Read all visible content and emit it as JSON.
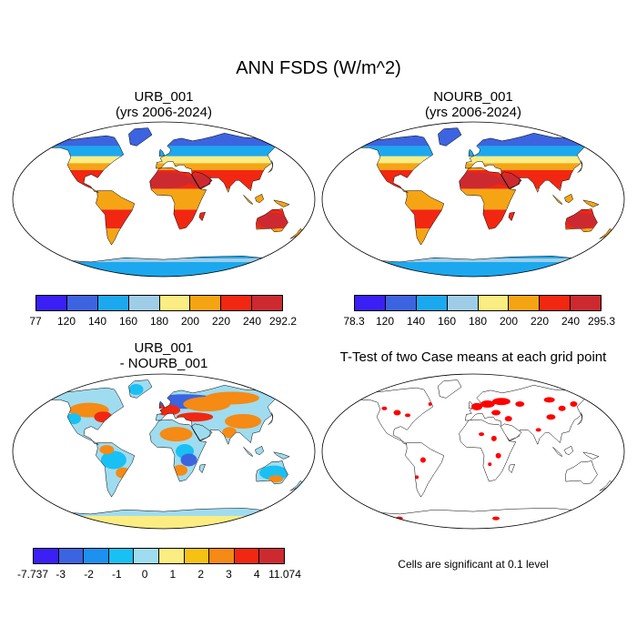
{
  "title": "ANN FSDS (W/m^2)",
  "panels": {
    "urb": {
      "name": "URB_001",
      "years": "(yrs 2006-2024)"
    },
    "nourb": {
      "name": "NOURB_001",
      "years": "(yrs 2006-2024)"
    },
    "diff": {
      "line1": "URB_001",
      "line2": "- NOURB_001"
    },
    "ttest": {
      "title": "T-Test of two Case means at each grid point",
      "note": "Cells are significant at 0.1 level"
    }
  },
  "colorbars": {
    "urb": {
      "colors": [
        "#3b1ff5",
        "#3c64e0",
        "#1ca8ef",
        "#9fcde8",
        "#fbed82",
        "#f5a514",
        "#f22712",
        "#cc2a30"
      ],
      "labels": [
        "77",
        "120",
        "140",
        "160",
        "180",
        "200",
        "220",
        "240",
        "292.2"
      ]
    },
    "nourb": {
      "colors": [
        "#3b1ff5",
        "#3c64e0",
        "#1ca8ef",
        "#9fcde8",
        "#fbed82",
        "#f5a514",
        "#f22712",
        "#cc2a30"
      ],
      "labels": [
        "78.3",
        "120",
        "140",
        "160",
        "180",
        "200",
        "220",
        "240",
        "295.3"
      ]
    },
    "diff": {
      "colors": [
        "#3b1ff5",
        "#3c64e0",
        "#1c91ef",
        "#19c0f4",
        "#9fdcf0",
        "#fbed82",
        "#f5c214",
        "#f58a14",
        "#f22712",
        "#cc2a30"
      ],
      "labels": [
        "-7.737",
        "-3",
        "-2",
        "-1",
        "0",
        "1",
        "2",
        "3",
        "4",
        "11.074"
      ]
    }
  },
  "map_colors": {
    "urb": {
      "ocean": "#ffffff",
      "land": "#f5a514",
      "arctic": "#3c64e0",
      "north": "#1ca8ef",
      "temperate": "#fbed82",
      "desert": "#f22712",
      "hot": "#cc2a30",
      "antarctic": "#1ca8ef",
      "antarctic_edge": "#9fcde8"
    },
    "diff": {
      "land": "#9fdcf0",
      "warm": "#f58a14",
      "hot": "#f22712",
      "cool": "#19c0f4",
      "cold": "#3c64e0",
      "antarctic": "#fbed82",
      "antarctic_edge": "#9fdcf0"
    },
    "ttest": {
      "signif": "#ff0000"
    }
  }
}
